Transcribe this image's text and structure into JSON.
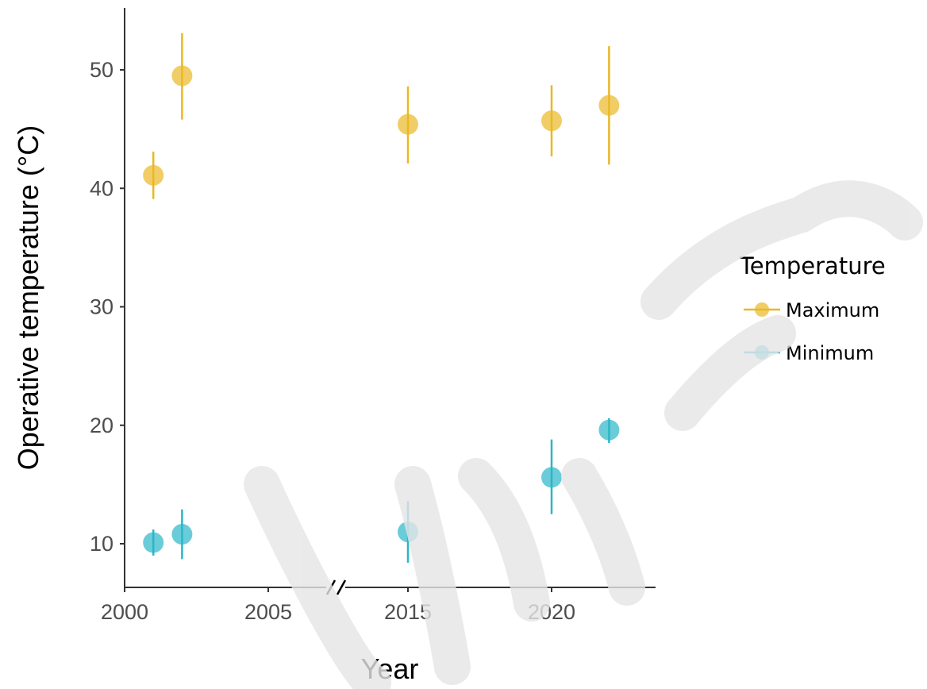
{
  "chart_data": {
    "type": "scatter",
    "xlabel": "Year",
    "ylabel": "Operative temperature (°C)",
    "x_ticks": [
      "2000",
      "2005",
      "2015",
      "2020"
    ],
    "y_ticks": [
      10,
      20,
      30,
      40,
      50
    ],
    "ylim": [
      7,
      55
    ],
    "x_axis_break": "between 2005 and 2015",
    "legend": {
      "title": "Temperature",
      "placement": "right"
    },
    "series": [
      {
        "name": "Maximum",
        "color": "#E9B825",
        "points": [
          {
            "x": 2001,
            "y": 41.1,
            "ymin": 39.1,
            "ymax": 43.1
          },
          {
            "x": 2002,
            "y": 49.5,
            "ymin": 45.8,
            "ymax": 53.1
          },
          {
            "x": 2015,
            "y": 45.4,
            "ymin": 42.1,
            "ymax": 48.6
          },
          {
            "x": 2020,
            "y": 45.7,
            "ymin": 42.7,
            "ymax": 48.7
          },
          {
            "x": 2022,
            "y": 47.0,
            "ymin": 42.0,
            "ymax": 52.0
          }
        ]
      },
      {
        "name": "Minimum",
        "color": "#2BB6C8",
        "points": [
          {
            "x": 2001,
            "y": 10.1,
            "ymin": 9.0,
            "ymax": 11.2
          },
          {
            "x": 2002,
            "y": 10.8,
            "ymin": 8.7,
            "ymax": 12.9
          },
          {
            "x": 2015,
            "y": 11.0,
            "ymin": 8.4,
            "ymax": 13.6
          },
          {
            "x": 2020,
            "y": 15.6,
            "ymin": 12.5,
            "ymax": 18.8
          },
          {
            "x": 2022,
            "y": 19.6,
            "ymin": 18.5,
            "ymax": 20.6
          }
        ]
      }
    ]
  }
}
